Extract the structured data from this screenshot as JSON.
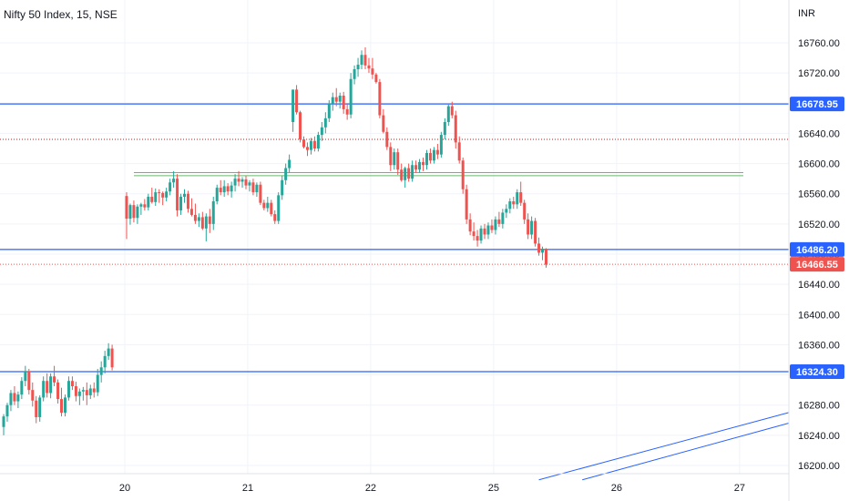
{
  "header": {
    "symbol": "Nifty 50 Index, 15, NSE",
    "currency": "INR"
  },
  "chart_data": {
    "type": "candlestick",
    "title": "Nifty 50 Index, 15, NSE",
    "ylim": [
      16185,
      16790
    ],
    "yticks": [
      "16760.00",
      "16720.00",
      "16680.00",
      "16640.00",
      "16600.00",
      "16560.00",
      "16520.00",
      "16480.00",
      "16440.00",
      "16400.00",
      "16360.00",
      "16320.00",
      "16280.00",
      "16240.00",
      "16200.00"
    ],
    "ytick_values": [
      16760,
      16720,
      16680,
      16640,
      16600,
      16560,
      16520,
      16480,
      16440,
      16400,
      16360,
      16320,
      16280,
      16240,
      16200
    ],
    "xticks": [
      "20",
      "21",
      "22",
      "25",
      "26",
      "27"
    ],
    "xtick_index": [
      34,
      68,
      102,
      136,
      170,
      204
    ],
    "horizontal_levels": [
      {
        "value": 16678.95,
        "label": "16678.95",
        "color": "#2962ff",
        "style": "solid"
      },
      {
        "value": 16486.2,
        "label": "16486.20",
        "color": "#2962ff",
        "style": "solid"
      },
      {
        "value": 16324.3,
        "label": "16324.30",
        "color": "#2962ff",
        "style": "solid"
      },
      {
        "value": 16466.55,
        "label": "16466.55",
        "color": "#ef5350",
        "style": "dotted"
      }
    ],
    "dotted_level": {
      "value": 16632,
      "color": "#b71c1c"
    },
    "green_zone": {
      "from_index": 35,
      "to_index": 204,
      "values": [
        16584,
        16588
      ],
      "color": "#66bb6a"
    },
    "trendlines": [
      {
        "from": [
          148,
          16181
        ],
        "to": [
          217,
          16270
        ]
      },
      {
        "from": [
          160,
          16181
        ],
        "to": [
          217,
          16256
        ]
      }
    ],
    "up_color": "#26a69a",
    "down_color": "#ef5350",
    "candles": [
      [
        16251,
        16268,
        16240,
        16265
      ],
      [
        16265,
        16283,
        16258,
        16280
      ],
      [
        16280,
        16300,
        16272,
        16296
      ],
      [
        16296,
        16305,
        16280,
        16285
      ],
      [
        16285,
        16298,
        16276,
        16294
      ],
      [
        16294,
        16317,
        16288,
        16312
      ],
      [
        16312,
        16332,
        16305,
        16325
      ],
      [
        16325,
        16328,
        16294,
        16300
      ],
      [
        16300,
        16310,
        16278,
        16286
      ],
      [
        16286,
        16292,
        16256,
        16264
      ],
      [
        16264,
        16293,
        16258,
        16290
      ],
      [
        16290,
        16318,
        16285,
        16312
      ],
      [
        16312,
        16322,
        16290,
        16296
      ],
      [
        16296,
        16322,
        16289,
        16318
      ],
      [
        16318,
        16332,
        16305,
        16310
      ],
      [
        16310,
        16314,
        16282,
        16288
      ],
      [
        16288,
        16303,
        16265,
        16270
      ],
      [
        16270,
        16294,
        16265,
        16290
      ],
      [
        16290,
        16318,
        16286,
        16312
      ],
      [
        16312,
        16318,
        16300,
        16305
      ],
      [
        16305,
        16311,
        16285,
        16292
      ],
      [
        16292,
        16302,
        16280,
        16298
      ],
      [
        16298,
        16304,
        16286,
        16300
      ],
      [
        16300,
        16310,
        16280,
        16293
      ],
      [
        16293,
        16307,
        16288,
        16302
      ],
      [
        16302,
        16310,
        16290,
        16297
      ],
      [
        16297,
        16328,
        16292,
        16320
      ],
      [
        16320,
        16338,
        16310,
        16330
      ],
      [
        16330,
        16352,
        16322,
        16345
      ],
      [
        16345,
        16362,
        16340,
        16355
      ],
      [
        16355,
        16360,
        16326,
        16330
      ],
      [
        16557,
        16562,
        16500,
        16527
      ],
      [
        16527,
        16547,
        16519,
        16545
      ],
      [
        16545,
        16551,
        16522,
        16528
      ],
      [
        16528,
        16546,
        16520,
        16543
      ],
      [
        16543,
        16548,
        16532,
        16546
      ],
      [
        16546,
        16553,
        16538,
        16542
      ],
      [
        16542,
        16560,
        16538,
        16556
      ],
      [
        16556,
        16568,
        16547,
        16549
      ],
      [
        16549,
        16567,
        16544,
        16562
      ],
      [
        16562,
        16566,
        16548,
        16561
      ],
      [
        16561,
        16563,
        16545,
        16555
      ],
      [
        16555,
        16568,
        16550,
        16563
      ],
      [
        16563,
        16580,
        16558,
        16575
      ],
      [
        16575,
        16590,
        16568,
        16580
      ],
      [
        16580,
        16586,
        16530,
        16538
      ],
      [
        16538,
        16560,
        16532,
        16556
      ],
      [
        16556,
        16566,
        16548,
        16560
      ],
      [
        16560,
        16564,
        16535,
        16540
      ],
      [
        16540,
        16554,
        16530,
        16532
      ],
      [
        16532,
        16547,
        16520,
        16524
      ],
      [
        16524,
        16534,
        16516,
        16529
      ],
      [
        16529,
        16536,
        16512,
        16514
      ],
      [
        16514,
        16534,
        16497,
        16530
      ],
      [
        16530,
        16540,
        16508,
        16520
      ],
      [
        16520,
        16556,
        16512,
        16550
      ],
      [
        16550,
        16572,
        16546,
        16568
      ],
      [
        16568,
        16578,
        16558,
        16562
      ],
      [
        16562,
        16578,
        16556,
        16570
      ],
      [
        16570,
        16574,
        16558,
        16563
      ],
      [
        16563,
        16576,
        16555,
        16571
      ],
      [
        16571,
        16586,
        16563,
        16580
      ],
      [
        16580,
        16590,
        16570,
        16576
      ],
      [
        16576,
        16582,
        16568,
        16579
      ],
      [
        16579,
        16584,
        16566,
        16571
      ],
      [
        16571,
        16578,
        16563,
        16575
      ],
      [
        16575,
        16580,
        16558,
        16562
      ],
      [
        16562,
        16575,
        16556,
        16572
      ],
      [
        16572,
        16576,
        16545,
        16548
      ],
      [
        16548,
        16552,
        16538,
        16541
      ],
      [
        16541,
        16556,
        16536,
        16548
      ],
      [
        16548,
        16552,
        16530,
        16533
      ],
      [
        16533,
        16538,
        16520,
        16524
      ],
      [
        16524,
        16562,
        16520,
        16558
      ],
      [
        16558,
        16584,
        16552,
        16578
      ],
      [
        16578,
        16600,
        16572,
        16594
      ],
      [
        16594,
        16612,
        16588,
        16605
      ],
      [
        16655,
        16698,
        16642,
        16698
      ],
      [
        16698,
        16704,
        16665,
        16668
      ],
      [
        16668,
        16670,
        16628,
        16632
      ],
      [
        16632,
        16636,
        16620,
        16622
      ],
      [
        16622,
        16628,
        16610,
        16618
      ],
      [
        16618,
        16634,
        16612,
        16630
      ],
      [
        16630,
        16636,
        16616,
        16620
      ],
      [
        16620,
        16642,
        16616,
        16638
      ],
      [
        16638,
        16655,
        16630,
        16648
      ],
      [
        16648,
        16668,
        16640,
        16660
      ],
      [
        16660,
        16684,
        16655,
        16679
      ],
      [
        16679,
        16694,
        16670,
        16688
      ],
      [
        16688,
        16700,
        16676,
        16682
      ],
      [
        16682,
        16694,
        16673,
        16690
      ],
      [
        16690,
        16695,
        16666,
        16672
      ],
      [
        16672,
        16680,
        16658,
        16665
      ],
      [
        16665,
        16720,
        16660,
        16712
      ],
      [
        16712,
        16730,
        16705,
        16725
      ],
      [
        16725,
        16740,
        16715,
        16731
      ],
      [
        16731,
        16750,
        16725,
        16744
      ],
      [
        16744,
        16754,
        16725,
        16730
      ],
      [
        16730,
        16740,
        16720,
        16726
      ],
      [
        16726,
        16740,
        16712,
        16718
      ],
      [
        16718,
        16720,
        16706,
        16708
      ],
      [
        16708,
        16712,
        16660,
        16664
      ],
      [
        16664,
        16672,
        16640,
        16642
      ],
      [
        16642,
        16648,
        16618,
        16622
      ],
      [
        16622,
        16628,
        16590,
        16598
      ],
      [
        16598,
        16620,
        16592,
        16615
      ],
      [
        16615,
        16620,
        16585,
        16592
      ],
      [
        16592,
        16600,
        16576,
        16578
      ],
      [
        16578,
        16596,
        16568,
        16594
      ],
      [
        16594,
        16600,
        16576,
        16580
      ],
      [
        16580,
        16604,
        16576,
        16598
      ],
      [
        16598,
        16604,
        16588,
        16592
      ],
      [
        16592,
        16606,
        16588,
        16602
      ],
      [
        16602,
        16608,
        16590,
        16598
      ],
      [
        16598,
        16618,
        16592,
        16614
      ],
      [
        16614,
        16620,
        16600,
        16604
      ],
      [
        16604,
        16622,
        16600,
        16618
      ],
      [
        16618,
        16626,
        16606,
        16612
      ],
      [
        16612,
        16642,
        16608,
        16638
      ],
      [
        16638,
        16660,
        16632,
        16655
      ],
      [
        16655,
        16678,
        16650,
        16676
      ],
      [
        16676,
        16682,
        16660,
        16664
      ],
      [
        16664,
        16670,
        16620,
        16628
      ],
      [
        16628,
        16636,
        16600,
        16604
      ],
      [
        16604,
        16608,
        16560,
        16566
      ],
      [
        16566,
        16572,
        16520,
        16526
      ],
      [
        16526,
        16534,
        16505,
        16510
      ],
      [
        16510,
        16522,
        16498,
        16504
      ],
      [
        16504,
        16512,
        16490,
        16498
      ],
      [
        16498,
        16518,
        16494,
        16514
      ],
      [
        16514,
        16520,
        16500,
        16506
      ],
      [
        16506,
        16522,
        16500,
        16518
      ],
      [
        16518,
        16526,
        16508,
        16512
      ],
      [
        16512,
        16530,
        16506,
        16526
      ],
      [
        16526,
        16536,
        16516,
        16520
      ],
      [
        16520,
        16540,
        16514,
        16535
      ],
      [
        16535,
        16546,
        16528,
        16540
      ],
      [
        16540,
        16554,
        16534,
        16550
      ],
      [
        16550,
        16556,
        16540,
        16546
      ],
      [
        16546,
        16566,
        16540,
        16562
      ],
      [
        16562,
        16576,
        16544,
        16548
      ],
      [
        16548,
        16552,
        16520,
        16526
      ],
      [
        16526,
        16534,
        16500,
        16506
      ],
      [
        16506,
        16530,
        16500,
        16524
      ],
      [
        16524,
        16528,
        16490,
        16494
      ],
      [
        16494,
        16502,
        16478,
        16482
      ],
      [
        16482,
        16490,
        16472,
        16486
      ],
      [
        16486,
        16488,
        16462,
        16466
      ]
    ]
  }
}
